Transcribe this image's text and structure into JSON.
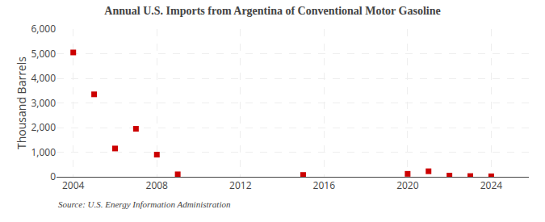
{
  "chart_data": {
    "type": "scatter",
    "title": "Annual U.S. Imports from Argentina of Conventional Motor Gasoline",
    "ylabel": "Thousand Barrels",
    "annotations": [
      "Source: U.S. Energy Information Administration"
    ],
    "x": [
      2004,
      2005,
      2006,
      2007,
      2008,
      2009,
      2015,
      2020,
      2021,
      2022,
      2023,
      2024
    ],
    "values": [
      5050,
      3350,
      1150,
      1950,
      900,
      100,
      75,
      120,
      225,
      50,
      30,
      20
    ],
    "color": "#cc0000",
    "marker": "square",
    "xlim": [
      2003.2,
      2025.8
    ],
    "xticks": [
      2004,
      2008,
      2012,
      2016,
      2020,
      2024
    ],
    "ylim": [
      0,
      6000
    ],
    "yticks": [
      0,
      {
        "value": 1000,
        "label": "1,000"
      },
      {
        "value": 2000,
        "label": "2,000"
      },
      {
        "value": 3000,
        "label": "3,000"
      },
      {
        "value": 4000,
        "label": "4,000"
      },
      {
        "value": 5000,
        "label": "5,000"
      },
      {
        "value": 6000,
        "label": "6,000"
      }
    ],
    "grid": true
  }
}
